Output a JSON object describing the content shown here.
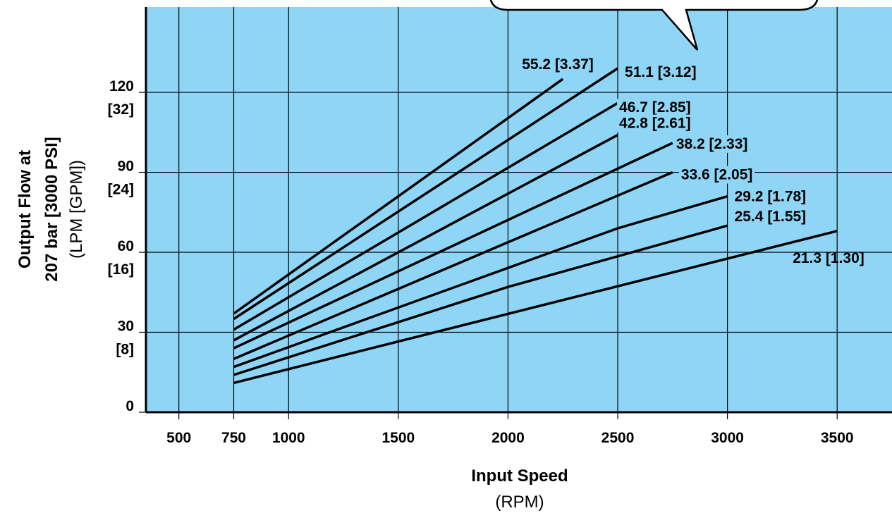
{
  "colors": {
    "plot_background": "#8fd6f6",
    "line": "#000000",
    "grid": "#000000"
  },
  "chart_data": {
    "type": "line",
    "title": "",
    "xlabel": "Input Speed",
    "xlabel_unit": "(RPM)",
    "ylabel": "Output Flow at",
    "ylabel_line2": "207 bar [3000 PSI]",
    "ylabel_unit": "(LPM [GPM])",
    "xlim": [
      350,
      3750
    ],
    "ylim": [
      0,
      152
    ],
    "x_ticks": [
      500,
      750,
      1000,
      1500,
      2000,
      2500,
      3000,
      3500
    ],
    "x_tick_labels": [
      "500",
      "750",
      "1000",
      "1500",
      "2000",
      "2500",
      "3000",
      "3500"
    ],
    "y_ticks": [
      0,
      30,
      60,
      90,
      120
    ],
    "y_tick_labels": [
      {
        "main": "0",
        "sub": ""
      },
      {
        "main": "30",
        "sub": "[8]"
      },
      {
        "main": "60",
        "sub": "[16]"
      },
      {
        "main": "90",
        "sub": "[24]"
      },
      {
        "main": "120",
        "sub": "[32]"
      }
    ],
    "grid": true,
    "series": [
      {
        "name": "55.2 [3.37]",
        "x": [
          750,
          2250
        ],
        "y": [
          37,
          125
        ]
      },
      {
        "name": "51.1 [3.12]",
        "x": [
          750,
          2500
        ],
        "y": [
          35,
          129
        ]
      },
      {
        "name": "46.7 [2.85]",
        "x": [
          750,
          2500
        ],
        "y": [
          31,
          116
        ]
      },
      {
        "name": "42.8 [2.61]",
        "x": [
          750,
          2500
        ],
        "y": [
          27,
          104
        ]
      },
      {
        "name": "38.2 [2.33]",
        "x": [
          750,
          2750
        ],
        "y": [
          24,
          101
        ]
      },
      {
        "name": "33.6 [2.05]",
        "x": [
          750,
          2750
        ],
        "y": [
          20,
          90
        ]
      },
      {
        "name": "29.2 [1.78]",
        "x": [
          750,
          2500,
          3000
        ],
        "y": [
          17,
          69,
          81
        ]
      },
      {
        "name": "25.4 [1.55]",
        "x": [
          750,
          2000,
          3000
        ],
        "y": [
          14,
          47,
          70
        ]
      },
      {
        "name": "21.3 [1.30]",
        "x": [
          750,
          3500
        ],
        "y": [
          11,
          68
        ]
      }
    ]
  }
}
